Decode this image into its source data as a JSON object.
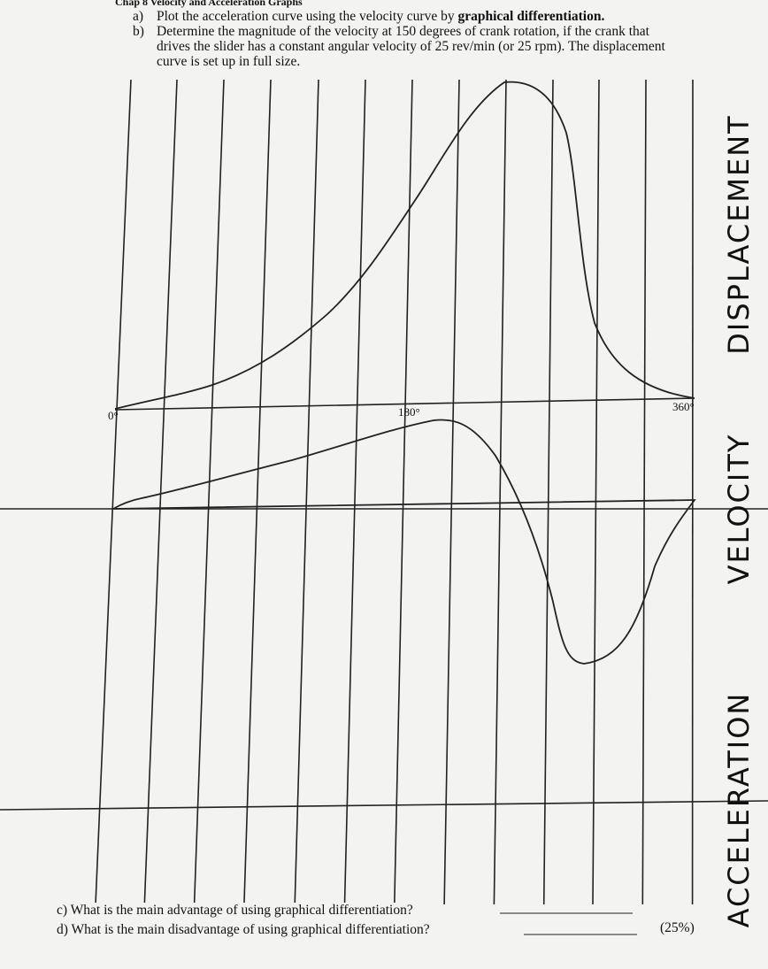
{
  "header": {
    "title": "Chap 8 Velocity and Acceleration Graphs"
  },
  "items": [
    {
      "label": "a)",
      "text": "Plot the acceleration curve using the velocity curve by ",
      "emphasis": "graphical differentiation."
    },
    {
      "label": "b)",
      "text": "Determine the magnitude of the velocity at 150 degrees of crank rotation, if the crank that drives the slider has a constant angular velocity of 25 rev/min (or 25 rpm). The displacement curve is set up in full size."
    }
  ],
  "graph": {
    "start_label": "0°",
    "mid_label": "180°",
    "end_label": "360°",
    "curves": [
      "DISPLACEMENT",
      "VELOCITY",
      "ACCELERATION"
    ]
  },
  "questions": [
    {
      "text": "c) What is the main advantage of using graphical differentiation?"
    },
    {
      "text": "d) What is the main disadvantage of using graphical differentiation?",
      "points": "(25%)"
    }
  ]
}
